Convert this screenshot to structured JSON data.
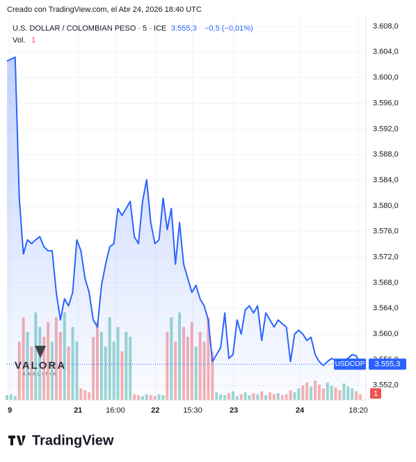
{
  "chart_data": {
    "type": "line",
    "credit": "Creado con TradingView.com, el Abr 24, 2026 18:40 UTC",
    "symbol": "U.S. DOLLAR / COLOMBIAN PESO · 5 · ICE",
    "last_label": "3.555,3",
    "change_label": "−0,5 (−0,01%)",
    "series": [
      {
        "name": "USDCOP",
        "color": "#2962ff",
        "values": [
          3602.6,
          3602.9,
          3603.2,
          3581.2,
          3572.5,
          3574.7,
          3574.1,
          3574.7,
          3575.2,
          3573.6,
          3573,
          3573,
          3566.5,
          3562.2,
          3565.5,
          3564.4,
          3566.5,
          3574.7,
          3573,
          3568.7,
          3566.5,
          3562.2,
          3561.1,
          3567.6,
          3570.9,
          3573.6,
          3574.1,
          3579.6,
          3578.5,
          3579.6,
          3580.7,
          3575.2,
          3574.1,
          3580.7,
          3584.1,
          3577.4,
          3574.1,
          3574.7,
          3581.2,
          3576.3,
          3579.6,
          3570.9,
          3577.4,
          3570.9,
          3568.7,
          3566.5,
          3567.6,
          3565.5,
          3564.4,
          3562.2,
          3555.7,
          3556.8,
          3557.9,
          3563.3,
          3556.2,
          3556.8,
          3562.2,
          3560,
          3563.8,
          3564.4,
          3563.3,
          3564.4,
          3559,
          3563.3,
          3562.2,
          3561.1,
          3562.2,
          3561.6,
          3561.1,
          3555.7,
          3560,
          3560.6,
          3560,
          3559,
          3559.5,
          3556.8,
          3555.7,
          3555.1,
          3555.7,
          3556.2,
          3555.9,
          3555.7,
          3555.9,
          3556.2,
          3556.8,
          3556.6,
          3555.3
        ]
      }
    ],
    "volume": {
      "name": "Vol.",
      "last_label": "1",
      "up_color": "#26a69a",
      "down_color": "#ef5350",
      "values": [
        5,
        6,
        4,
        60,
        85,
        70,
        55,
        90,
        75,
        65,
        80,
        60,
        85,
        70,
        90,
        55,
        75,
        60,
        12,
        10,
        8,
        65,
        80,
        70,
        55,
        85,
        60,
        75,
        50,
        70,
        65,
        6,
        5,
        4,
        6,
        5,
        4,
        6,
        5,
        70,
        85,
        60,
        90,
        75,
        65,
        80,
        55,
        70,
        60,
        85,
        50,
        8,
        6,
        5,
        7,
        9,
        4,
        6,
        8,
        5,
        7,
        6,
        9,
        5,
        8,
        6,
        7,
        5,
        6,
        10,
        8,
        12,
        15,
        18,
        14,
        20,
        16,
        12,
        18,
        15,
        13,
        10,
        17,
        14,
        12,
        9,
        6
      ],
      "vlim": [
        0,
        100
      ]
    },
    "xlim": [
      0,
      86
    ],
    "xticks": [
      {
        "value": 0.7,
        "label": "9"
      },
      {
        "value": 17.3,
        "label": "21"
      },
      {
        "value": 26.4,
        "label": "16:00"
      },
      {
        "value": 36.1,
        "label": "22"
      },
      {
        "value": 45.2,
        "label": "15:30"
      },
      {
        "value": 55.2,
        "label": "23"
      },
      {
        "value": 71.3,
        "label": "24"
      },
      {
        "value": 85.5,
        "label": "18:20"
      }
    ],
    "ylim": [
      3549.7,
      3609.95
    ],
    "yticks": [
      {
        "value": 3552,
        "label": "3.552,0"
      },
      {
        "value": 3556,
        "label": "3.556,0"
      },
      {
        "value": 3560,
        "label": "3.560,0"
      },
      {
        "value": 3564,
        "label": "3.564,0"
      },
      {
        "value": 3568,
        "label": "3.568,0"
      },
      {
        "value": 3572,
        "label": "3.572,0"
      },
      {
        "value": 3576,
        "label": "3.576,0"
      },
      {
        "value": 3580,
        "label": "3.580,0"
      },
      {
        "value": 3584,
        "label": "3.584,0"
      },
      {
        "value": 3588,
        "label": "3.588,0"
      },
      {
        "value": 3592,
        "label": "3.592,0"
      },
      {
        "value": 3596,
        "label": "3.596,0"
      },
      {
        "value": 3600,
        "label": "3.600,0"
      },
      {
        "value": 3604,
        "label": "3.604,0"
      },
      {
        "value": 3608,
        "label": "3.608,0"
      }
    ],
    "grid": true,
    "watermark": [
      "VALORA",
      "ANALITIK"
    ],
    "brand": "TradingView"
  }
}
